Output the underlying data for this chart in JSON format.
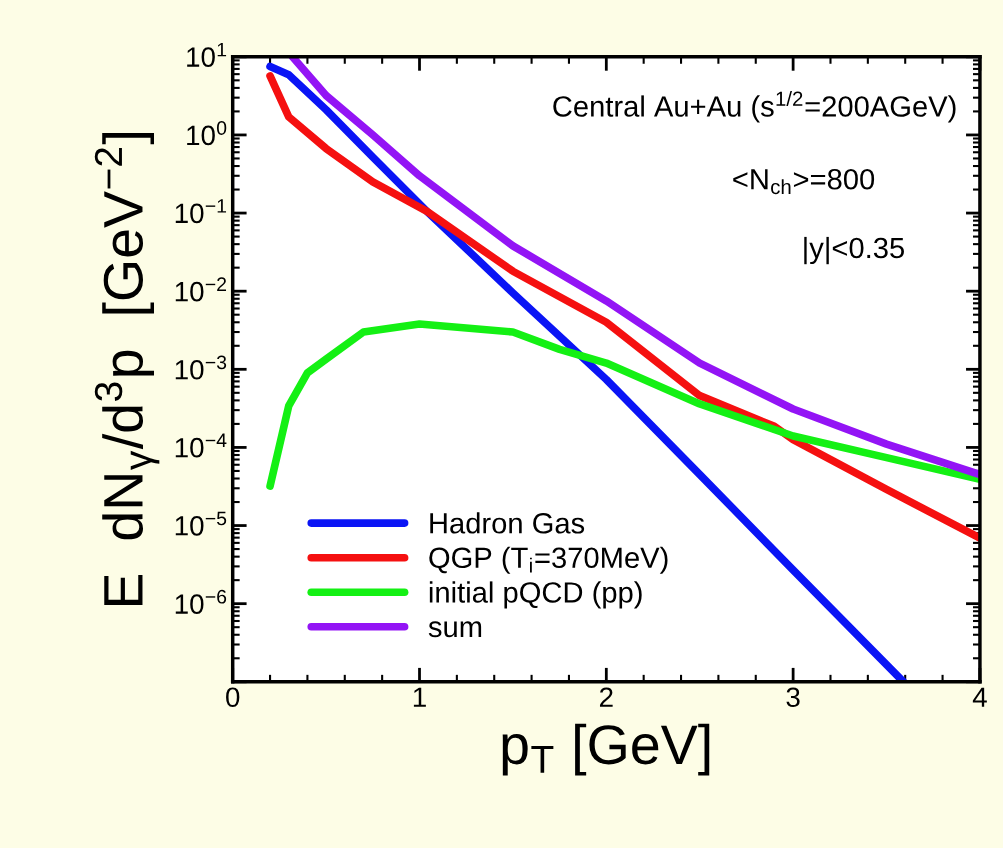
{
  "chart_data": {
    "type": "line",
    "xlabel": "p$_{T}$ [GeV]",
    "ylabel": "E  dN$_{γ}$/d$^{3}$p  [GeV$^{−2}$]",
    "annotations": [
      "Central Au+Au (s$^{1/2}$=200AGeV)",
      "<N$_{ch}$>=800",
      "|y|<0.35"
    ],
    "log": "y",
    "grid": false,
    "legend": "bottom left",
    "line_style": "solid",
    "marker": "none",
    "xlim": [
      0,
      4
    ],
    "xticks": [
      0,
      1,
      2,
      3,
      4
    ],
    "ylim": [
      1e-07,
      10
    ],
    "yticks": [
      {
        "value": 1e-07,
        "label": null
      },
      {
        "value": 1e-06,
        "label": "10$^{−6}$"
      },
      {
        "value": 1e-05,
        "label": "10$^{−5}$"
      },
      {
        "value": 0.0001,
        "label": "10$^{−4}$"
      },
      {
        "value": 0.001,
        "label": "10$^{−3}$"
      },
      {
        "value": 0.01,
        "label": "10$^{−2}$"
      },
      {
        "value": 0.1,
        "label": "10$^{−1}$"
      },
      {
        "value": 1,
        "label": "10$^{0}$"
      },
      {
        "value": 10,
        "label": "10$^{1}$"
      }
    ],
    "series": [
      {
        "name": "Hadron Gas",
        "color": "#0a14f5",
        "x": [
          0.2,
          0.3,
          0.5,
          0.75,
          1.04,
          1.5,
          2,
          2.5,
          3,
          3.59
        ],
        "values": [
          7.5,
          5.9,
          2.1,
          0.52,
          0.105,
          0.0095,
          0.00074,
          4.5e-05,
          2.7e-06,
          1e-07
        ]
      },
      {
        "name": "QGP (T$_{i}$=370MeV)",
        "color": "#f51010",
        "x": [
          0.2,
          0.3,
          0.5,
          0.75,
          1.04,
          1.5,
          2,
          2.5,
          2.9,
          3,
          3.5,
          4
        ],
        "values": [
          5.7,
          1.7,
          0.67,
          0.25,
          0.105,
          0.018,
          0.004,
          0.00046,
          0.000186,
          0.000126,
          2.9e-05,
          6.9e-06
        ]
      },
      {
        "name": "initial pQCD (pp)",
        "color": "#14f014",
        "x": [
          0.2,
          0.3,
          0.4,
          0.5,
          0.7,
          1,
          1.5,
          1.75,
          2,
          2.5,
          3,
          3.5,
          4
        ],
        "values": [
          3.2e-05,
          0.00034,
          0.0009,
          0.00135,
          0.003,
          0.0038,
          0.003,
          0.0018,
          0.0012,
          0.00036,
          0.00014,
          7.4e-05,
          3.9e-05
        ]
      },
      {
        "name": "sum",
        "color": "#9314f5",
        "x": [
          0.32,
          0.5,
          0.75,
          1,
          1.5,
          2,
          2.5,
          3,
          3.5,
          4
        ],
        "values": [
          10,
          3.2,
          1.0,
          0.3,
          0.038,
          0.0075,
          0.0012,
          0.00031,
          0.00011,
          4.5e-05
        ]
      }
    ]
  }
}
